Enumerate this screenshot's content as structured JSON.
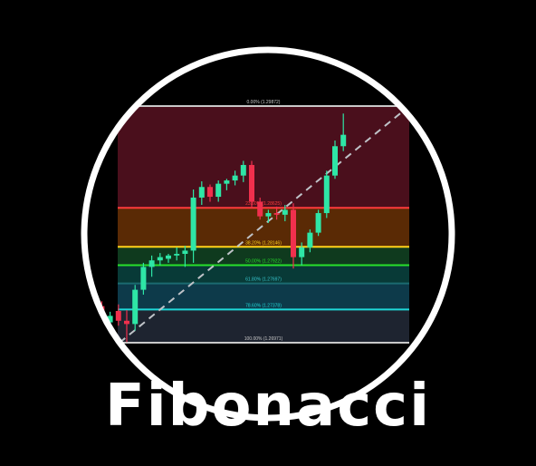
{
  "title": "Fibonacci",
  "colors": {
    "background": "#000000",
    "ring": "#ffffff",
    "bull": "#2ee6a6",
    "bear": "#f0304d",
    "trend": "#bfc3c8"
  },
  "chart_data": {
    "type": "candlestick",
    "ylim": [
      1.2694,
      1.2995
    ],
    "fib_levels": [
      {
        "ratio": 0,
        "label": "0.00% (1.29872)",
        "price": 1.29872,
        "line": "#c8c8c8",
        "band": "#4a0f1c"
      },
      {
        "ratio": 0.236,
        "label": "23.60% (1.28625)",
        "price": 1.28625,
        "line": "#ff3b3b",
        "band": "#5a2a05"
      },
      {
        "ratio": 0.382,
        "label": "38.20% (1.28146)",
        "price": 1.28146,
        "line": "#ffd21a",
        "band": "#0f3a1e"
      },
      {
        "ratio": 0.5,
        "label": "50.00% (1.27922)",
        "price": 1.27922,
        "line": "#27e02b",
        "band": "#083a37"
      },
      {
        "ratio": 0.618,
        "label": "61.80% (1.27697)",
        "price": 1.27697,
        "line": "#1b6a70",
        "band": "#0d3a4a"
      },
      {
        "ratio": 0.786,
        "label": "78.60% (1.27378)",
        "price": 1.27378,
        "line": "#1fd8d8",
        "band": "#1e2430"
      },
      {
        "ratio": 1,
        "label": "100.00% (1.26971)",
        "price": 1.26971,
        "line": "#c8c8c8",
        "band": ""
      }
    ],
    "candles": [
      {
        "o": 1.274,
        "h": 1.2762,
        "l": 1.2725,
        "c": 1.2745
      },
      {
        "o": 1.2745,
        "h": 1.2752,
        "l": 1.2728,
        "c": 1.2736
      },
      {
        "o": 1.2742,
        "h": 1.2748,
        "l": 1.2716,
        "c": 1.2722
      },
      {
        "o": 1.2722,
        "h": 1.2735,
        "l": 1.2712,
        "c": 1.273
      },
      {
        "o": 1.2736,
        "h": 1.2744,
        "l": 1.2718,
        "c": 1.2724
      },
      {
        "o": 1.2724,
        "h": 1.2737,
        "l": 1.2698,
        "c": 1.272
      },
      {
        "o": 1.272,
        "h": 1.2768,
        "l": 1.2712,
        "c": 1.2762
      },
      {
        "o": 1.2762,
        "h": 1.2795,
        "l": 1.2756,
        "c": 1.279
      },
      {
        "o": 1.279,
        "h": 1.2804,
        "l": 1.2778,
        "c": 1.2798
      },
      {
        "o": 1.2798,
        "h": 1.2807,
        "l": 1.2792,
        "c": 1.2802
      },
      {
        "o": 1.28,
        "h": 1.2806,
        "l": 1.2795,
        "c": 1.2804
      },
      {
        "o": 1.2804,
        "h": 1.2814,
        "l": 1.2798,
        "c": 1.2806
      },
      {
        "o": 1.2806,
        "h": 1.2816,
        "l": 1.279,
        "c": 1.281
      },
      {
        "o": 1.281,
        "h": 1.2885,
        "l": 1.2795,
        "c": 1.2875
      },
      {
        "o": 1.2875,
        "h": 1.2895,
        "l": 1.2866,
        "c": 1.2888
      },
      {
        "o": 1.2888,
        "h": 1.2891,
        "l": 1.287,
        "c": 1.2876
      },
      {
        "o": 1.2876,
        "h": 1.2896,
        "l": 1.287,
        "c": 1.2892
      },
      {
        "o": 1.2892,
        "h": 1.2898,
        "l": 1.2884,
        "c": 1.2896
      },
      {
        "o": 1.2896,
        "h": 1.2908,
        "l": 1.289,
        "c": 1.2902
      },
      {
        "o": 1.2902,
        "h": 1.292,
        "l": 1.2894,
        "c": 1.2915
      },
      {
        "o": 1.2915,
        "h": 1.292,
        "l": 1.2862,
        "c": 1.287
      },
      {
        "o": 1.287,
        "h": 1.2875,
        "l": 1.2848,
        "c": 1.2852
      },
      {
        "o": 1.2852,
        "h": 1.286,
        "l": 1.2844,
        "c": 1.2856
      },
      {
        "o": 1.2856,
        "h": 1.2864,
        "l": 1.2848,
        "c": 1.2854
      },
      {
        "o": 1.2854,
        "h": 1.2866,
        "l": 1.2846,
        "c": 1.286
      },
      {
        "o": 1.286,
        "h": 1.2868,
        "l": 1.2788,
        "c": 1.2802
      },
      {
        "o": 1.2802,
        "h": 1.282,
        "l": 1.2792,
        "c": 1.2814
      },
      {
        "o": 1.2814,
        "h": 1.2836,
        "l": 1.2808,
        "c": 1.2832
      },
      {
        "o": 1.2832,
        "h": 1.286,
        "l": 1.2828,
        "c": 1.2856
      },
      {
        "o": 1.2856,
        "h": 1.2908,
        "l": 1.285,
        "c": 1.2902
      },
      {
        "o": 1.2902,
        "h": 1.2945,
        "l": 1.2898,
        "c": 1.2938
      },
      {
        "o": 1.2938,
        "h": 1.2978,
        "l": 1.2932,
        "c": 1.2952
      }
    ]
  }
}
